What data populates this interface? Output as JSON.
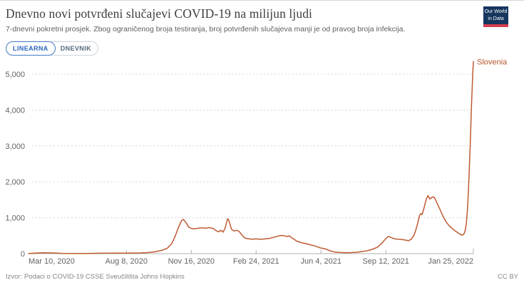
{
  "header": {
    "title": "Dnevno novi potvrđeni slučajevi COVID-19 na milijun ljudi",
    "subtitle": "7-dnevni pokretni prosjek. Zbog ograničenog broja testiranja, broj potvrđenih slučajeva manji je od pravog broja infekcija.",
    "logo_line1": "Our World",
    "logo_line2": "in Data"
  },
  "controls": {
    "linear_label": "LINEARNA",
    "log_label": "DNEVNIK"
  },
  "footer": {
    "source": "Izvor: Podaci o COVID-19 CSSE Sveučilišta Johns Hopkins",
    "license": "CC BY"
  },
  "colors": {
    "line": "#bf5a32",
    "series_label": "#b5562e",
    "grid": "#d5d5d5",
    "axis": "#b0b0b0",
    "tick_label": "#636363",
    "logo_bg": "#16365e",
    "logo_stripe": "#d43d4f",
    "active_button": "#2a65c0"
  },
  "chart_data": {
    "type": "line",
    "title": "Dnevno novi potvrđeni slučajevi COVID-19 na milijun ljudi",
    "xlabel": "",
    "ylabel": "",
    "xlim": [
      "2020-03-10",
      "2022-01-25"
    ],
    "ylim": [
      0,
      5400
    ],
    "grid": "horizontal-dotted",
    "legend_position": "end-of-line",
    "y_ticks": [
      {
        "value": 0,
        "label": "0"
      },
      {
        "value": 1000,
        "label": "1,000"
      },
      {
        "value": 2000,
        "label": "2,000"
      },
      {
        "value": 3000,
        "label": "3,000"
      },
      {
        "value": 4000,
        "label": "4,000"
      },
      {
        "value": 5000,
        "label": "5,000"
      }
    ],
    "x_ticks": [
      {
        "date": "2020-03-10",
        "label": "Mar 10, 2020"
      },
      {
        "date": "2020-08-08",
        "label": "Aug 8, 2020"
      },
      {
        "date": "2020-11-16",
        "label": "Nov 16, 2020"
      },
      {
        "date": "2021-02-24",
        "label": "Feb 24, 2021"
      },
      {
        "date": "2021-06-04",
        "label": "Jun 4, 2021"
      },
      {
        "date": "2021-09-12",
        "label": "Sep 12, 2021"
      },
      {
        "date": "2022-01-25",
        "label": "Jan 25, 2022"
      }
    ],
    "series": [
      {
        "name": "Slovenia",
        "color": "#bf5a32",
        "points": [
          [
            "2020-03-10",
            2
          ],
          [
            "2020-03-22",
            18
          ],
          [
            "2020-04-02",
            26
          ],
          [
            "2020-04-15",
            20
          ],
          [
            "2020-05-01",
            8
          ],
          [
            "2020-05-20",
            4
          ],
          [
            "2020-06-10",
            6
          ],
          [
            "2020-07-01",
            12
          ],
          [
            "2020-07-20",
            16
          ],
          [
            "2020-08-10",
            15
          ],
          [
            "2020-08-30",
            20
          ],
          [
            "2020-09-10",
            30
          ],
          [
            "2020-09-20",
            50
          ],
          [
            "2020-10-01",
            90
          ],
          [
            "2020-10-10",
            150
          ],
          [
            "2020-10-17",
            280
          ],
          [
            "2020-10-22",
            480
          ],
          [
            "2020-10-27",
            720
          ],
          [
            "2020-11-01",
            920
          ],
          [
            "2020-11-04",
            955
          ],
          [
            "2020-11-08",
            860
          ],
          [
            "2020-11-12",
            740
          ],
          [
            "2020-11-17",
            695
          ],
          [
            "2020-11-24",
            700
          ],
          [
            "2020-12-01",
            720
          ],
          [
            "2020-12-08",
            710
          ],
          [
            "2020-12-14",
            725
          ],
          [
            "2020-12-20",
            700
          ],
          [
            "2020-12-24",
            640
          ],
          [
            "2020-12-28",
            610
          ],
          [
            "2021-01-01",
            650
          ],
          [
            "2021-01-04",
            600
          ],
          [
            "2021-01-07",
            700
          ],
          [
            "2021-01-11",
            975
          ],
          [
            "2021-01-13",
            920
          ],
          [
            "2021-01-17",
            680
          ],
          [
            "2021-01-21",
            630
          ],
          [
            "2021-01-25",
            650
          ],
          [
            "2021-01-29",
            615
          ],
          [
            "2021-02-03",
            500
          ],
          [
            "2021-02-07",
            430
          ],
          [
            "2021-02-12",
            415
          ],
          [
            "2021-02-18",
            400
          ],
          [
            "2021-02-24",
            410
          ],
          [
            "2021-03-03",
            398
          ],
          [
            "2021-03-10",
            410
          ],
          [
            "2021-03-16",
            420
          ],
          [
            "2021-03-22",
            450
          ],
          [
            "2021-03-28",
            480
          ],
          [
            "2021-04-03",
            505
          ],
          [
            "2021-04-08",
            500
          ],
          [
            "2021-04-12",
            478
          ],
          [
            "2021-04-16",
            495
          ],
          [
            "2021-04-21",
            430
          ],
          [
            "2021-04-28",
            345
          ],
          [
            "2021-05-06",
            300
          ],
          [
            "2021-05-12",
            278
          ],
          [
            "2021-05-20",
            240
          ],
          [
            "2021-05-26",
            212
          ],
          [
            "2021-06-03",
            160
          ],
          [
            "2021-06-11",
            130
          ],
          [
            "2021-06-18",
            80
          ],
          [
            "2021-06-25",
            46
          ],
          [
            "2021-07-03",
            32
          ],
          [
            "2021-07-12",
            28
          ],
          [
            "2021-07-20",
            30
          ],
          [
            "2021-07-28",
            38
          ],
          [
            "2021-08-05",
            55
          ],
          [
            "2021-08-14",
            80
          ],
          [
            "2021-08-22",
            120
          ],
          [
            "2021-08-30",
            180
          ],
          [
            "2021-09-06",
            290
          ],
          [
            "2021-09-11",
            400
          ],
          [
            "2021-09-16",
            480
          ],
          [
            "2021-09-20",
            450
          ],
          [
            "2021-09-25",
            415
          ],
          [
            "2021-10-01",
            400
          ],
          [
            "2021-10-07",
            395
          ],
          [
            "2021-10-13",
            375
          ],
          [
            "2021-10-17",
            360
          ],
          [
            "2021-10-21",
            400
          ],
          [
            "2021-10-25",
            500
          ],
          [
            "2021-10-28",
            640
          ],
          [
            "2021-10-31",
            840
          ],
          [
            "2021-11-03",
            1060
          ],
          [
            "2021-11-05",
            1120
          ],
          [
            "2021-11-07",
            1090
          ],
          [
            "2021-11-10",
            1280
          ],
          [
            "2021-11-13",
            1500
          ],
          [
            "2021-11-16",
            1620
          ],
          [
            "2021-11-19",
            1520
          ],
          [
            "2021-11-22",
            1570
          ],
          [
            "2021-11-25",
            1580
          ],
          [
            "2021-11-28",
            1490
          ],
          [
            "2021-12-02",
            1330
          ],
          [
            "2021-12-06",
            1170
          ],
          [
            "2021-12-10",
            1010
          ],
          [
            "2021-12-14",
            880
          ],
          [
            "2021-12-19",
            770
          ],
          [
            "2021-12-24",
            690
          ],
          [
            "2021-12-29",
            620
          ],
          [
            "2022-01-03",
            560
          ],
          [
            "2022-01-07",
            515
          ],
          [
            "2022-01-10",
            535
          ],
          [
            "2022-01-12",
            620
          ],
          [
            "2022-01-14",
            820
          ],
          [
            "2022-01-16",
            1250
          ],
          [
            "2022-01-18",
            2000
          ],
          [
            "2022-01-20",
            3000
          ],
          [
            "2022-01-22",
            4100
          ],
          [
            "2022-01-24",
            5000
          ],
          [
            "2022-01-25",
            5350
          ]
        ]
      }
    ]
  }
}
